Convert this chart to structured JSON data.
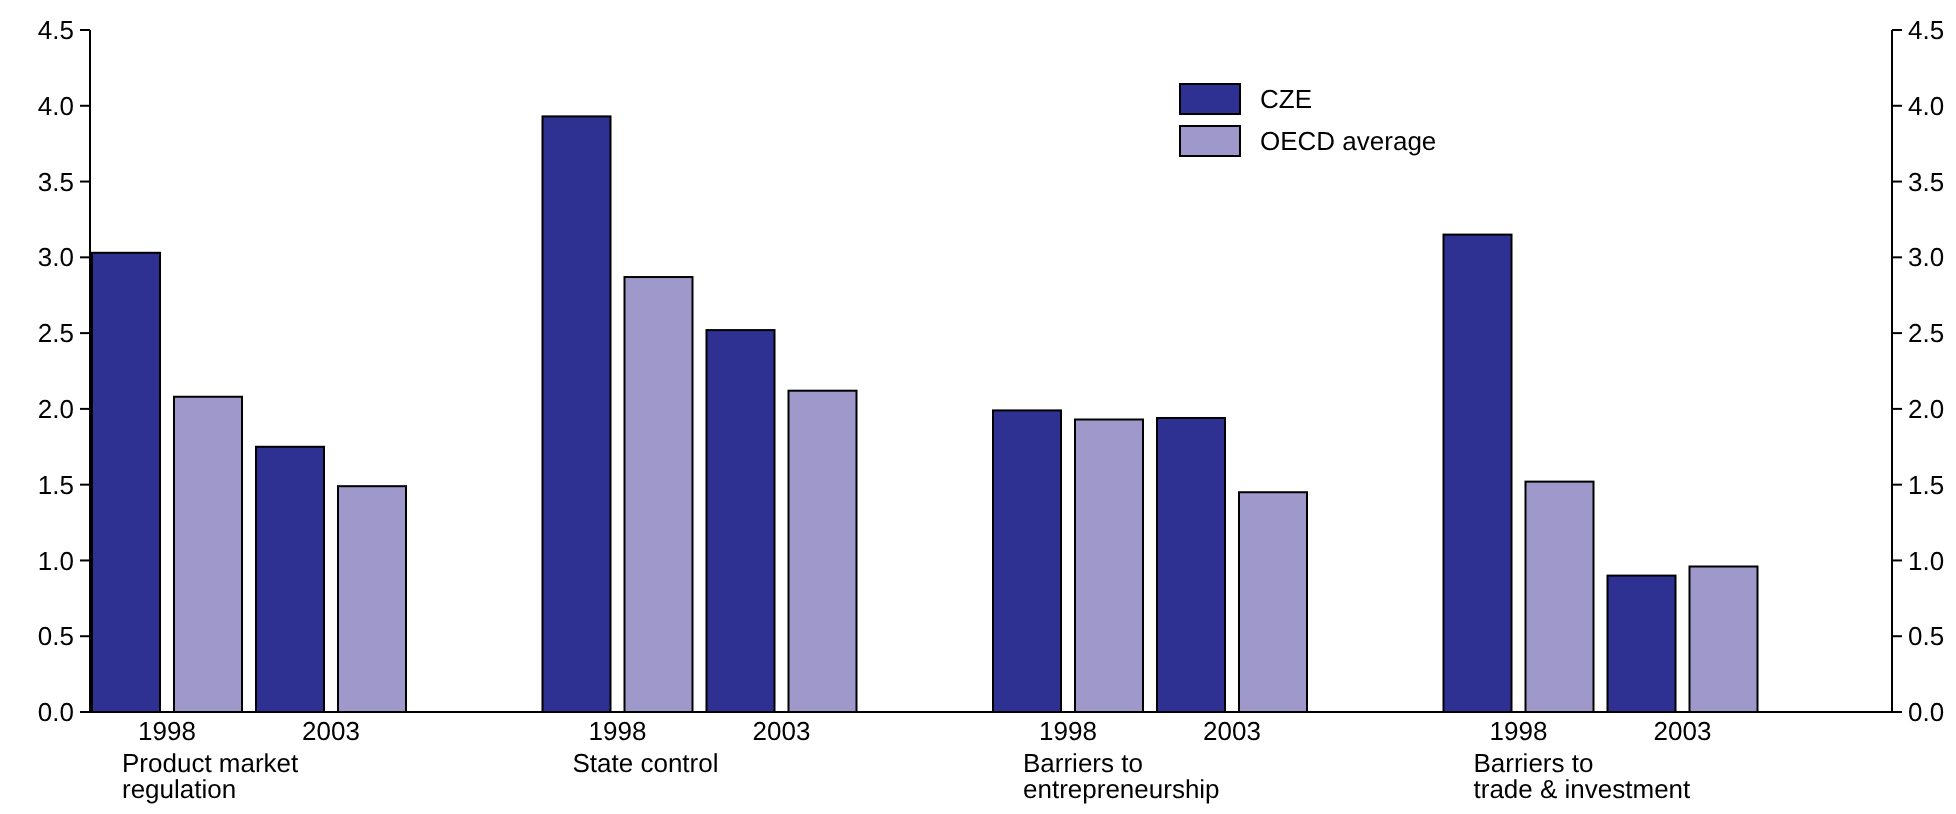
{
  "chart_data": {
    "type": "bar",
    "categories": [
      "1998",
      "2003",
      "1998",
      "2003",
      "1998",
      "2003",
      "1998",
      "2003"
    ],
    "series": [
      {
        "name": "CZE",
        "color": "#2e3192",
        "values": [
          3.03,
          1.75,
          3.93,
          2.52,
          1.99,
          1.94,
          3.15,
          0.9
        ]
      },
      {
        "name": "OECD average",
        "color": "#9e98cb",
        "values": [
          2.08,
          1.49,
          2.87,
          2.12,
          1.93,
          1.45,
          1.52,
          0.96
        ]
      }
    ],
    "annotations": [
      "Product market regulation",
      "State control",
      "Barriers to entrepreneurship",
      "Barriers to trade & investment"
    ],
    "ylim": [
      0,
      4.5
    ],
    "yticks": [
      {
        "value": 0,
        "label": "0.0"
      },
      {
        "value": 0.5,
        "label": "0.5"
      },
      {
        "value": 1,
        "label": "1.0"
      },
      {
        "value": 1.5,
        "label": "1.5"
      },
      {
        "value": 2,
        "label": "2.0"
      },
      {
        "value": 2.5,
        "label": "2.5"
      },
      {
        "value": 3,
        "label": "3.0"
      },
      {
        "value": 3.5,
        "label": "3.5"
      },
      {
        "value": 4,
        "label": "4.0"
      },
      {
        "value": 4.5,
        "label": "4.5"
      }
    ],
    "y2lim": [
      0,
      4.5
    ],
    "y2ticks": [
      {
        "value": 0,
        "label": "0.0"
      },
      {
        "value": 0.5,
        "label": "0.5"
      },
      {
        "value": 1,
        "label": "1.0"
      },
      {
        "value": 1.5,
        "label": "1.5"
      },
      {
        "value": 2,
        "label": "2.0"
      },
      {
        "value": 2.5,
        "label": "2.5"
      },
      {
        "value": 3,
        "label": "3.0"
      },
      {
        "value": 3.5,
        "label": "3.5"
      },
      {
        "value": 4,
        "label": "4.0"
      },
      {
        "value": 4.5,
        "label": "4.5"
      }
    ],
    "grid": false,
    "legend": "top right"
  }
}
